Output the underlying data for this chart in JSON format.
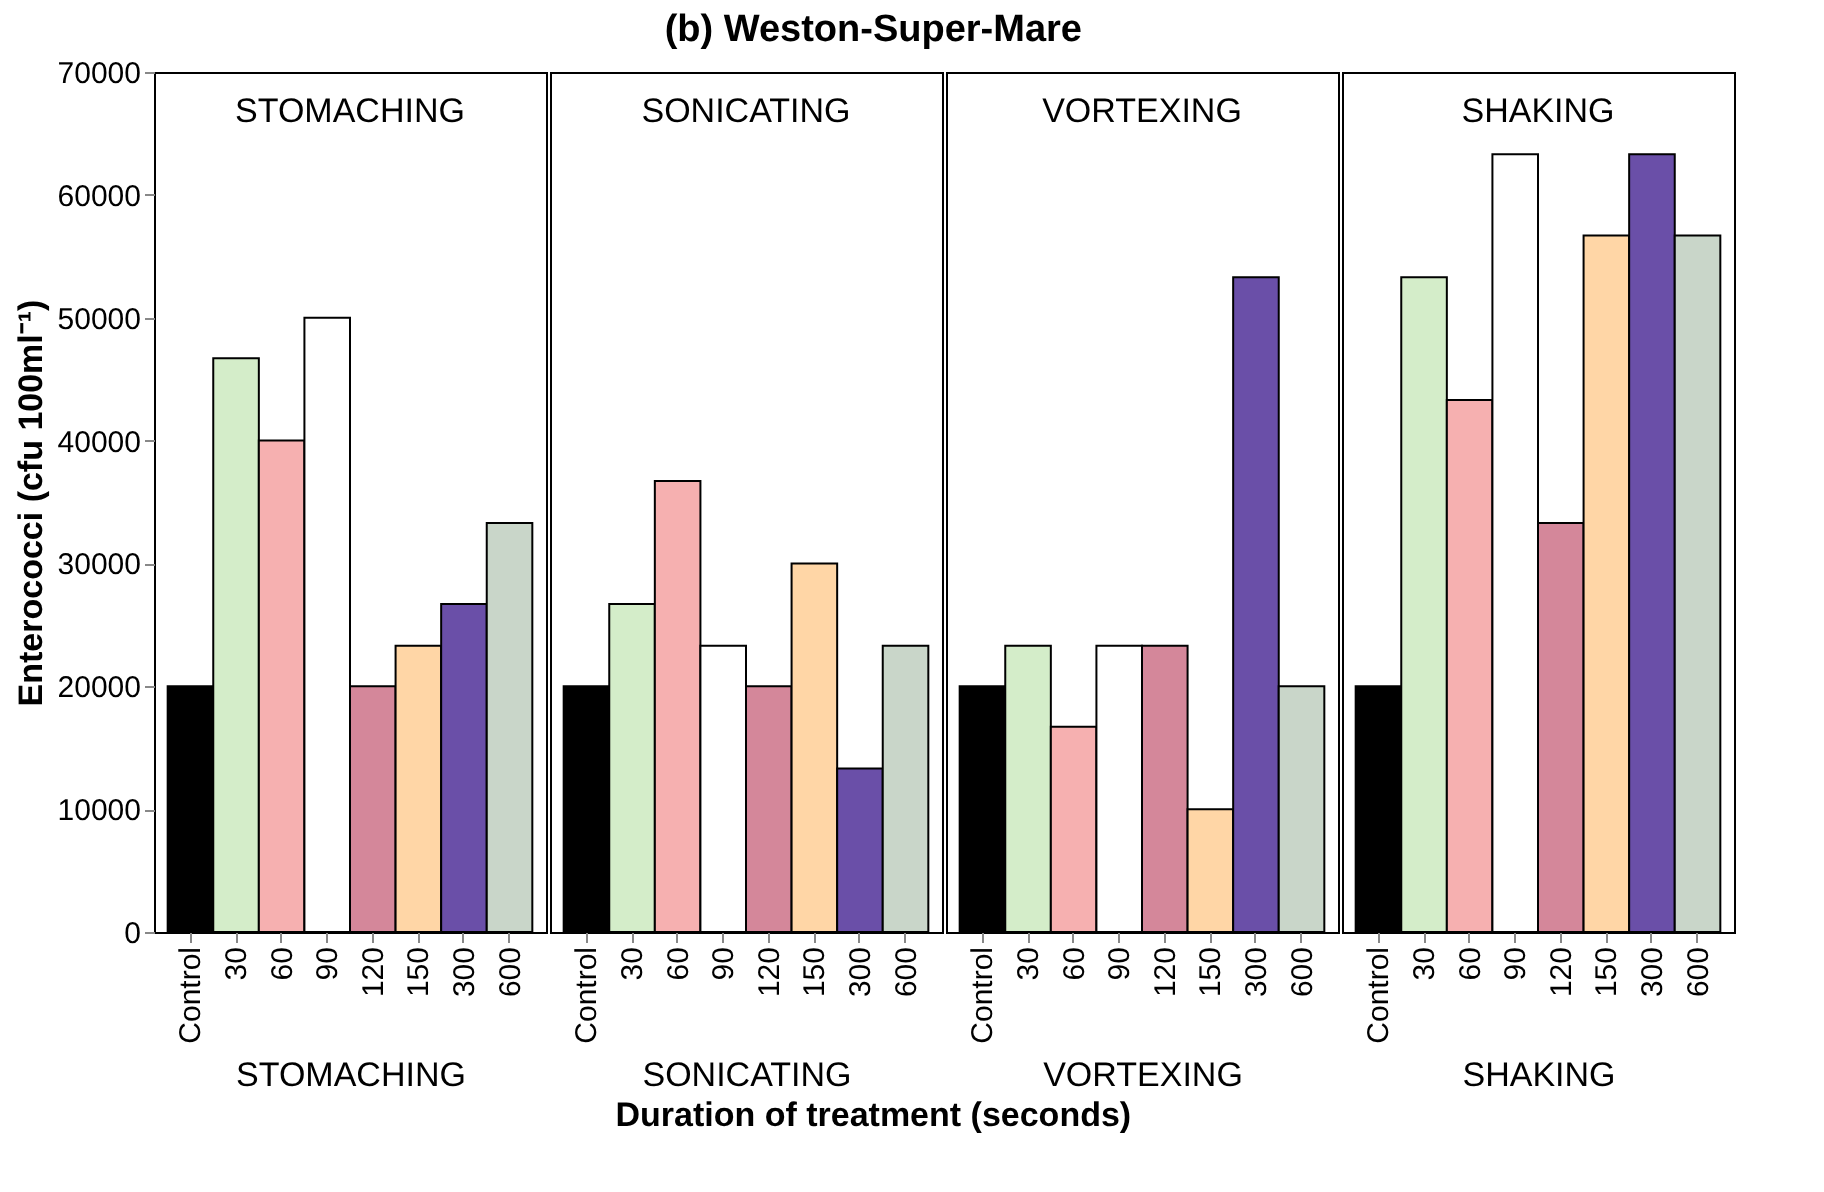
{
  "chart_data": [
    {
      "type": "bar",
      "ylabel": "Enterococci (cfu 100ml⁻¹)",
      "xlabel": "STOMACHING",
      "annotations": [
        "STOMACHING",
        "Duration of treatment (seconds)",
        "(b) Weston-Super-Mare"
      ],
      "categories": [
        "Control",
        "30",
        "60",
        "90",
        "120",
        "150",
        "300",
        "600"
      ],
      "values": [
        20000,
        46700,
        40000,
        50000,
        20000,
        23300,
        26700,
        33300
      ],
      "colors": [
        "#000000",
        "#d4edc9",
        "#f6b0b0",
        "#ffffff",
        "#d4879a",
        "#ffd6a6",
        "#6a4fa8",
        "#c9d6c9"
      ],
      "ylim": [
        0,
        70000
      ],
      "yticks": [
        0,
        10000,
        20000,
        30000,
        40000,
        50000,
        60000,
        70000
      ]
    },
    {
      "type": "bar",
      "xlabel": "SONICATING",
      "annotations": [
        "SONICATING"
      ],
      "categories": [
        "Control",
        "30",
        "60",
        "90",
        "120",
        "150",
        "300",
        "600"
      ],
      "values": [
        20000,
        26700,
        36700,
        23300,
        20000,
        30000,
        13300,
        23300
      ],
      "colors": [
        "#000000",
        "#d4edc9",
        "#f6b0b0",
        "#ffffff",
        "#d4879a",
        "#ffd6a6",
        "#6a4fa8",
        "#c9d6c9"
      ],
      "ylim": [
        0,
        70000
      ],
      "tick_labels": "x"
    },
    {
      "type": "bar",
      "xlabel": "VORTEXING",
      "annotations": [
        "VORTEXING"
      ],
      "categories": [
        "Control",
        "30",
        "60",
        "90",
        "120",
        "150",
        "300",
        "600"
      ],
      "values": [
        20000,
        23300,
        16700,
        23300,
        23300,
        10000,
        53300,
        20000
      ],
      "colors": [
        "#000000",
        "#d4edc9",
        "#f6b0b0",
        "#ffffff",
        "#d4879a",
        "#ffd6a6",
        "#6a4fa8",
        "#c9d6c9"
      ],
      "ylim": [
        0,
        70000
      ],
      "tick_labels": "x"
    },
    {
      "type": "bar",
      "xlabel": "SHAKING",
      "annotations": [
        "SHAKING"
      ],
      "categories": [
        "Control",
        "30",
        "60",
        "90",
        "120",
        "150",
        "300",
        "600"
      ],
      "values": [
        20000,
        53300,
        43300,
        63300,
        33300,
        56700,
        63300,
        56700
      ],
      "colors": [
        "#000000",
        "#d4edc9",
        "#f6b0b0",
        "#ffffff",
        "#d4879a",
        "#ffd6a6",
        "#6a4fa8",
        "#c9d6c9"
      ],
      "ylim": [
        0,
        70000
      ],
      "tick_labels": "x"
    }
  ]
}
